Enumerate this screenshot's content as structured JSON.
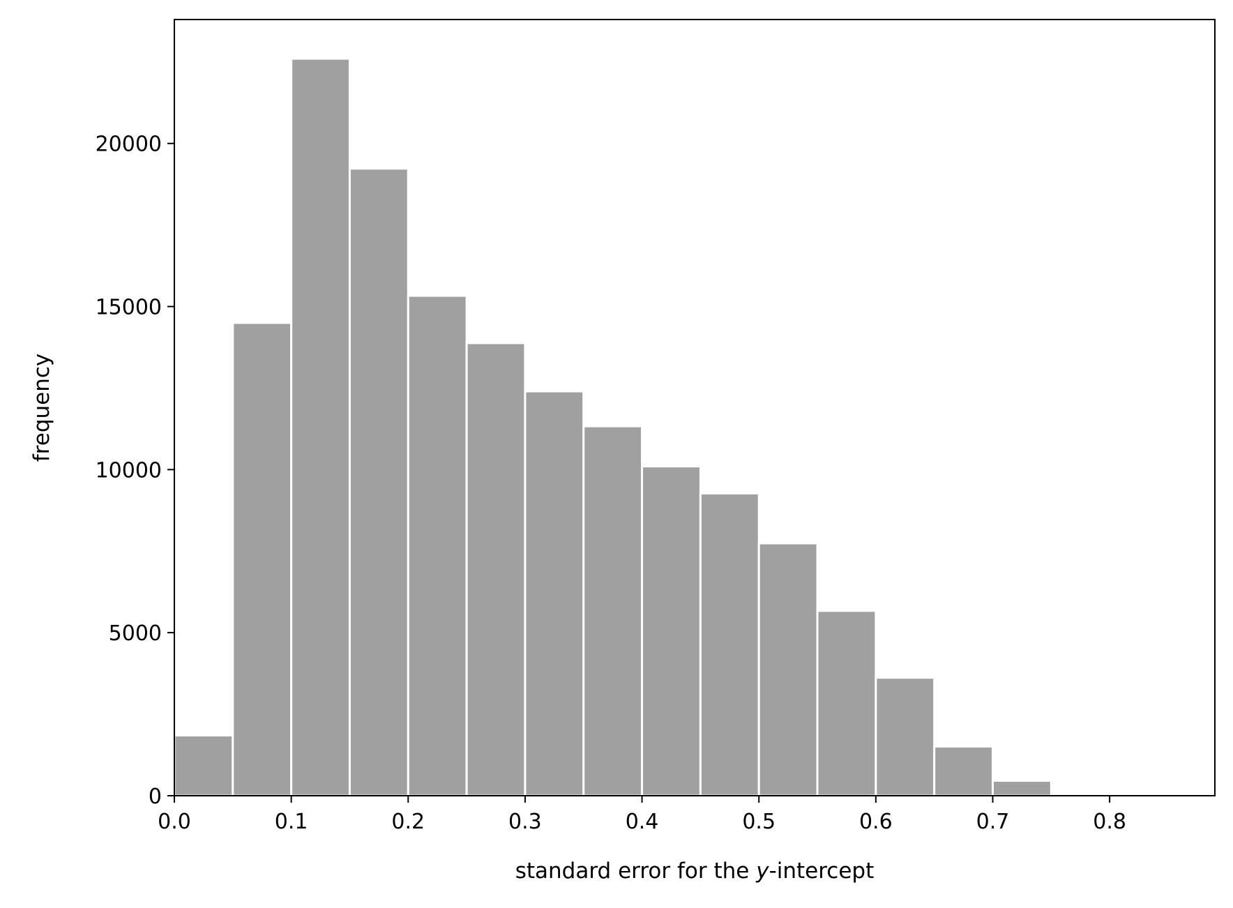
{
  "chart_data": {
    "type": "bar",
    "subtype": "histogram",
    "bin_width": 0.05,
    "bin_starts": [
      0.0,
      0.05,
      0.1,
      0.15,
      0.2,
      0.25,
      0.3,
      0.35,
      0.4,
      0.45,
      0.5,
      0.55,
      0.6,
      0.65,
      0.7
    ],
    "values": [
      1850,
      14500,
      22600,
      19230,
      15330,
      13880,
      12400,
      11330,
      10100,
      9270,
      7740,
      5670,
      3620,
      1510,
      460
    ],
    "xlabel": {
      "prefix": "standard error for the ",
      "italic": "y",
      "suffix": "-intercept"
    },
    "ylabel": "frequency",
    "xlim": [
      0.0,
      0.89
    ],
    "ylim": [
      0,
      23800
    ],
    "xticks": [
      0.0,
      0.1,
      0.2,
      0.3,
      0.4,
      0.5,
      0.6,
      0.7,
      0.8
    ],
    "xtick_labels": [
      "0.0",
      "0.1",
      "0.2",
      "0.3",
      "0.4",
      "0.5",
      "0.6",
      "0.7",
      "0.8"
    ],
    "yticks": [
      0,
      5000,
      10000,
      15000,
      20000
    ],
    "ytick_labels": [
      "0",
      "5000",
      "10000",
      "15000",
      "20000"
    ],
    "grid": false,
    "colors": {
      "bar": "#a0a0a0",
      "bar_edge": "#ffffff",
      "axis": "#000000"
    }
  }
}
